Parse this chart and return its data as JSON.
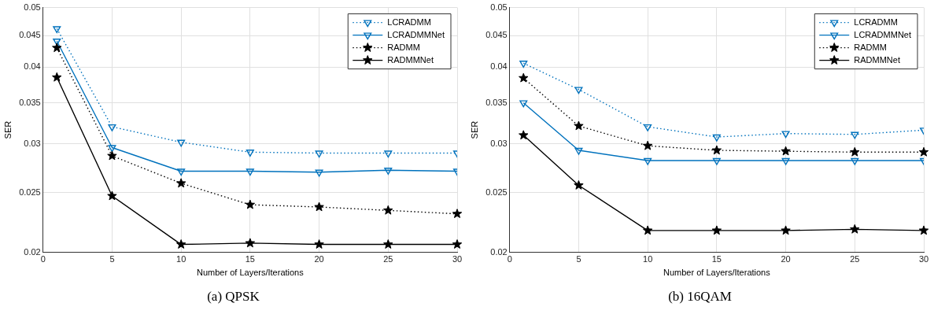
{
  "chart_data": [
    {
      "type": "line",
      "x": [
        1,
        5,
        10,
        15,
        20,
        25,
        30
      ],
      "xlabel": "Number of Layers/Iterations",
      "ylabel": "SER",
      "log": "y",
      "grid": true,
      "legend": "top right",
      "xlim": [
        0,
        30
      ],
      "xticks": [
        0,
        5,
        10,
        15,
        20,
        25,
        30
      ],
      "ylim": [
        0.02,
        0.05
      ],
      "yticks": [
        0.02,
        0.025,
        0.03,
        0.035,
        0.04,
        0.045,
        0.05
      ],
      "annotations": [
        "(a)  QPSK"
      ],
      "series": [
        {
          "name": "LCRADMM",
          "color": "#0072bd",
          "marker": "triangle",
          "line_style": "dotted",
          "values": [
            0.0462,
            0.032,
            0.0302,
            0.0291,
            0.029,
            0.029,
            0.029
          ]
        },
        {
          "name": "LCRADMMNet",
          "color": "#0072bd",
          "marker": "triangle",
          "line_style": "solid",
          "values": [
            0.0441,
            0.0296,
            0.0271,
            0.0271,
            0.027,
            0.0272,
            0.0271
          ]
        },
        {
          "name": "RADMM",
          "color": "#000000",
          "marker": "star",
          "line_style": "dotted",
          "values": [
            0.043,
            0.0287,
            0.0259,
            0.0239,
            0.0237,
            0.0234,
            0.0231
          ]
        },
        {
          "name": "RADMMNet",
          "color": "#000000",
          "marker": "star",
          "line_style": "solid",
          "values": [
            0.0385,
            0.0247,
            0.0206,
            0.0207,
            0.0206,
            0.0206,
            0.0206
          ]
        }
      ]
    },
    {
      "type": "line",
      "x": [
        1,
        5,
        10,
        15,
        20,
        25,
        30
      ],
      "xlabel": "Number of Layers/Iterations",
      "ylabel": "SER",
      "log": "y",
      "grid": true,
      "legend": "top right",
      "xlim": [
        0,
        30
      ],
      "xticks": [
        0,
        5,
        10,
        15,
        20,
        25,
        30
      ],
      "ylim": [
        0.02,
        0.05
      ],
      "yticks": [
        0.02,
        0.025,
        0.03,
        0.035,
        0.04,
        0.045,
        0.05
      ],
      "annotations": [
        "(b)  16QAM"
      ],
      "series": [
        {
          "name": "LCRADMM",
          "color": "#0072bd",
          "marker": "triangle",
          "line_style": "dotted",
          "values": [
            0.0406,
            0.0368,
            0.032,
            0.0308,
            0.0312,
            0.0311,
            0.0316
          ]
        },
        {
          "name": "LCRADMMNet",
          "color": "#0072bd",
          "marker": "triangle",
          "line_style": "solid",
          "values": [
            0.035,
            0.0293,
            0.0282,
            0.0282,
            0.0282,
            0.0282,
            0.0282
          ]
        },
        {
          "name": "RADMM",
          "color": "#000000",
          "marker": "star",
          "line_style": "dotted",
          "values": [
            0.0384,
            0.0321,
            0.0298,
            0.0293,
            0.0292,
            0.0291,
            0.0291
          ]
        },
        {
          "name": "RADMMNet",
          "color": "#000000",
          "marker": "star",
          "line_style": "solid",
          "values": [
            0.031,
            0.0257,
            0.0217,
            0.0217,
            0.0217,
            0.0218,
            0.0217
          ]
        }
      ]
    }
  ]
}
